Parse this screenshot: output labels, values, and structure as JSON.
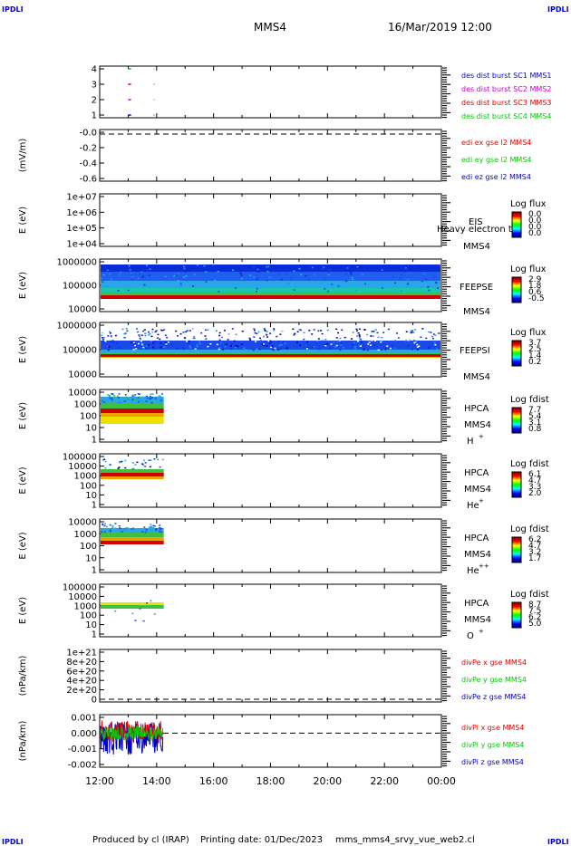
{
  "header": {
    "corner_tl": "IPDLI",
    "corner_tr": "IPDLI",
    "corner_bl": "IPDLI",
    "corner_br": "IPDLI",
    "spacecraft": "MMS4",
    "datetime": "16/Mar/2019 12:00"
  },
  "footer": {
    "credit": "Produced by cl (IRAP)",
    "print_date": "Printing date: 01/Dec/2023",
    "script": "mms_mms4_srvy_vue_web2.cl"
  },
  "colors": {
    "red": "#e00000",
    "green": "#00c800",
    "blue": "#0000c8",
    "magenta": "#c800c8"
  },
  "chart_data": [
    {
      "type": "scatter",
      "panel": "burst",
      "yticks": [
        "4",
        "3",
        "2",
        "1"
      ],
      "legend": [
        {
          "name": "des dist burst SC1 MMS1",
          "color": "#0000c8"
        },
        {
          "name": "des dist burst SC2 MMS2",
          "color": "#c800c8"
        },
        {
          "name": "des dist burst SC3 MMS3",
          "color": "#e00000"
        },
        {
          "name": "des dist burst SC4 MMS4",
          "color": "#00c800"
        }
      ]
    },
    {
      "type": "line",
      "panel": "edi",
      "ylabel": "(mV/m)",
      "yticks": [
        "-0.0",
        "-0.2",
        "-0.4",
        "-0.6"
      ],
      "legend": [
        {
          "name": "edi ex gse l2 MMS4",
          "color": "#e00000"
        },
        {
          "name": "edi ey gse l2 MMS4",
          "color": "#00c800"
        },
        {
          "name": "edi ez gse l2 MMS4",
          "color": "#0000c8"
        }
      ]
    },
    {
      "type": "heatmap",
      "panel": "eis",
      "ylabel": "E (eV)",
      "yticks": [
        "1e+07",
        "1e+06",
        "1e+05",
        "1e+04"
      ],
      "instrument": "EIS",
      "species": "Heavy electron to",
      "sc": "MMS4",
      "cbar_title": "Log flux",
      "cbar_ticks": [
        "0.0",
        "0.0",
        "0.0",
        "0.0"
      ]
    },
    {
      "type": "heatmap",
      "panel": "feepse",
      "ylabel": "E (eV)",
      "yticks": [
        "1000000",
        "100000",
        "10000"
      ],
      "instrument": "FEEPSE",
      "sc": "MMS4",
      "cbar_title": "Log flux",
      "cbar_ticks": [
        "2.9",
        "1.8",
        "0.6",
        "-0.5"
      ]
    },
    {
      "type": "heatmap",
      "panel": "feepsi",
      "ylabel": "E (eV)",
      "yticks": [
        "1000000",
        "100000",
        "10000"
      ],
      "instrument": "FEEPSI",
      "sc": "MMS4",
      "cbar_title": "Log flux",
      "cbar_ticks": [
        "3.7",
        "2.5",
        "1.4",
        "0.2"
      ]
    },
    {
      "type": "heatmap",
      "panel": "hpca_h",
      "ylabel": "E (eV)",
      "yticks": [
        "10000",
        "1000",
        "100",
        "10",
        "1"
      ],
      "instrument": "HPCA",
      "sc": "MMS4",
      "species_base": "H",
      "species_sup": "+",
      "cbar_title": "Log fdist",
      "cbar_ticks": [
        "7.7",
        "5.4",
        "3.1",
        "0.8"
      ]
    },
    {
      "type": "heatmap",
      "panel": "hpca_he1",
      "ylabel": "E (eV)",
      "yticks": [
        "100000",
        "10000",
        "1000",
        "100",
        "10",
        "1"
      ],
      "instrument": "HPCA",
      "sc": "MMS4",
      "species_base": "He",
      "species_sup": "+",
      "cbar_title": "Log fdist",
      "cbar_ticks": [
        "6.1",
        "4.7",
        "3.3",
        "2.0"
      ]
    },
    {
      "type": "heatmap",
      "panel": "hpca_he2",
      "ylabel": "E (eV)",
      "yticks": [
        "10000",
        "1000",
        "100",
        "10",
        "1"
      ],
      "instrument": "HPCA",
      "sc": "MMS4",
      "species_base": "He",
      "species_sup": "++",
      "cbar_title": "Log fdist",
      "cbar_ticks": [
        "6.2",
        "4.7",
        "3.2",
        "1.7"
      ]
    },
    {
      "type": "heatmap",
      "panel": "hpca_o",
      "ylabel": "E (eV)",
      "yticks": [
        "100000",
        "10000",
        "1000",
        "100",
        "10",
        "1"
      ],
      "instrument": "HPCA",
      "sc": "MMS4",
      "species_base": "O",
      "species_sup": "+",
      "cbar_title": "Log fdist",
      "cbar_ticks": [
        "8.7",
        "7.5",
        "6.2",
        "5.0"
      ]
    },
    {
      "type": "line",
      "panel": "divpe",
      "ylabel": "(nPa/km)",
      "yticks": [
        "1e+21",
        "8e+20",
        "6e+20",
        "4e+20",
        "2e+20",
        "0"
      ],
      "legend": [
        {
          "name": "divPe x gse MMS4",
          "color": "#e00000"
        },
        {
          "name": "divPe y gse MMS4",
          "color": "#00c800"
        },
        {
          "name": "divPe z gse MMS4",
          "color": "#0000c8"
        }
      ]
    },
    {
      "type": "line",
      "panel": "divpi",
      "ylabel": "(nPa/km)",
      "yticks": [
        "0.001",
        "0.000",
        "-0.001",
        "-0.002"
      ],
      "legend": [
        {
          "name": "divPi x gse MMS4",
          "color": "#e00000"
        },
        {
          "name": "divPi y gse MMS4",
          "color": "#00c800"
        },
        {
          "name": "divPi z gse MMS4",
          "color": "#0000c8"
        }
      ]
    }
  ],
  "time_axis": [
    "12:00",
    "14:00",
    "16:00",
    "18:00",
    "20:00",
    "22:00",
    "00:00"
  ]
}
